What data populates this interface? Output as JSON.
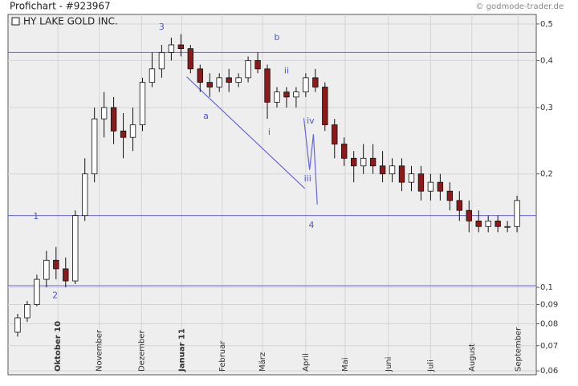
{
  "header": {
    "title": "Profichart - #923967",
    "copyright": "© godmode-trader.de"
  },
  "chart_data": {
    "type": "candlestick",
    "legend": "HY LAKE GOLD INC.",
    "log_scale": true,
    "grid": true,
    "up_color": "#ffffff",
    "down_color": "#8b1a1a",
    "line_color": "#6666dd",
    "categories": [
      null,
      null,
      null,
      null,
      null,
      null,
      null,
      null,
      null,
      null,
      null,
      null,
      null,
      null,
      null,
      null,
      null,
      null,
      null,
      null,
      null,
      null,
      null,
      null,
      null,
      null,
      null,
      null,
      null,
      null,
      null,
      null,
      null,
      null,
      null,
      null,
      null,
      null,
      null,
      null,
      null,
      null,
      null,
      null,
      null,
      null,
      null,
      null,
      null,
      null,
      null,
      null,
      null
    ],
    "open": [
      0.076,
      0.083,
      0.09,
      0.105,
      0.118,
      0.112,
      0.104,
      0.155,
      0.2,
      0.28,
      0.3,
      0.26,
      0.25,
      0.27,
      0.35,
      0.38,
      0.42,
      0.44,
      0.43,
      0.38,
      0.35,
      0.34,
      0.36,
      0.35,
      0.36,
      0.4,
      0.38,
      0.31,
      0.33,
      0.32,
      0.33,
      0.36,
      0.34,
      0.27,
      0.24,
      0.22,
      0.21,
      0.22,
      0.21,
      0.2,
      0.21,
      0.19,
      0.2,
      0.18,
      0.19,
      0.18,
      0.17,
      0.16,
      0.15,
      0.145,
      0.15,
      0.145,
      0.145
    ],
    "high": [
      0.085,
      0.092,
      0.108,
      0.125,
      0.128,
      0.12,
      0.16,
      0.22,
      0.3,
      0.33,
      0.32,
      0.29,
      0.3,
      0.36,
      0.42,
      0.44,
      0.46,
      0.47,
      0.44,
      0.39,
      0.37,
      0.37,
      0.38,
      0.37,
      0.41,
      0.42,
      0.39,
      0.34,
      0.34,
      0.34,
      0.37,
      0.38,
      0.35,
      0.28,
      0.25,
      0.23,
      0.24,
      0.24,
      0.23,
      0.22,
      0.22,
      0.21,
      0.21,
      0.2,
      0.2,
      0.19,
      0.18,
      0.17,
      0.16,
      0.155,
      0.155,
      0.15,
      0.175
    ],
    "low": [
      0.074,
      0.081,
      0.089,
      0.1,
      0.105,
      0.1,
      0.102,
      0.15,
      0.19,
      0.25,
      0.24,
      0.22,
      0.23,
      0.26,
      0.34,
      0.36,
      0.4,
      0.41,
      0.37,
      0.33,
      0.32,
      0.33,
      0.33,
      0.34,
      0.35,
      0.37,
      0.28,
      0.3,
      0.3,
      0.3,
      0.32,
      0.33,
      0.26,
      0.22,
      0.21,
      0.19,
      0.2,
      0.2,
      0.19,
      0.19,
      0.18,
      0.18,
      0.17,
      0.17,
      0.17,
      0.16,
      0.15,
      0.14,
      0.14,
      0.14,
      0.14,
      0.14,
      0.14
    ],
    "close": [
      0.083,
      0.09,
      0.105,
      0.118,
      0.112,
      0.104,
      0.155,
      0.2,
      0.28,
      0.3,
      0.26,
      0.25,
      0.27,
      0.35,
      0.38,
      0.42,
      0.44,
      0.43,
      0.38,
      0.35,
      0.34,
      0.36,
      0.35,
      0.36,
      0.4,
      0.38,
      0.31,
      0.33,
      0.32,
      0.33,
      0.36,
      0.34,
      0.27,
      0.24,
      0.22,
      0.21,
      0.22,
      0.21,
      0.2,
      0.21,
      0.19,
      0.2,
      0.18,
      0.19,
      0.18,
      0.17,
      0.16,
      0.15,
      0.145,
      0.15,
      0.145,
      0.145,
      0.17
    ],
    "xlim": [
      -1,
      54
    ],
    "xticks": [
      {
        "value": 4.2,
        "label": "Oktober 10",
        "bold": true
      },
      {
        "value": 8.5,
        "label": "November"
      },
      {
        "value": 12.9,
        "label": "Dezember"
      },
      {
        "value": 17.1,
        "label": "Januar 11",
        "bold": true
      },
      {
        "value": 21.3,
        "label": "Februar"
      },
      {
        "value": 25.5,
        "label": "März"
      },
      {
        "value": 30.0,
        "label": "April"
      },
      {
        "value": 34.1,
        "label": "Mai"
      },
      {
        "value": 38.6,
        "label": "Juni"
      },
      {
        "value": 43.0,
        "label": "Juli"
      },
      {
        "value": 47.3,
        "label": "August"
      },
      {
        "value": 52.1,
        "label": "September"
      }
    ],
    "ylim": [
      0.0586,
      0.53
    ],
    "yticks": [
      {
        "value": 0.5,
        "label": "0,5"
      },
      {
        "value": 0.4,
        "label": "0,4"
      },
      {
        "value": 0.3,
        "label": "0,3"
      },
      {
        "value": 0.2,
        "label": "0,2"
      },
      {
        "value": 0.1,
        "label": "0,1"
      },
      {
        "value": 0.09,
        "label": "0,09"
      },
      {
        "value": 0.08,
        "label": "0,08"
      },
      {
        "value": 0.07,
        "label": "0,07"
      },
      {
        "value": 0.06,
        "label": "0,06"
      }
    ],
    "hlines": [
      0.42,
      0.155,
      0.101
    ],
    "lines": [
      [
        [
          17.6,
          0.362
        ],
        [
          29.9,
          0.183
        ]
      ],
      [
        [
          29.8,
          0.281
        ],
        [
          30.4,
          0.205
        ],
        [
          30.8,
          0.255
        ],
        [
          31.2,
          0.166
        ]
      ]
    ],
    "annotations": [
      {
        "text": "1",
        "x": 1.9,
        "y": 0.154
      },
      {
        "text": "2",
        "x": 3.9,
        "y": 0.095
      },
      {
        "text": "3",
        "x": 15.0,
        "y": 0.49
      },
      {
        "text": "a",
        "x": 19.6,
        "y": 0.284
      },
      {
        "text": "b",
        "x": 27.0,
        "y": 0.46
      },
      {
        "text": "i",
        "x": 26.2,
        "y": 0.258
      },
      {
        "text": "ii",
        "x": 28.0,
        "y": 0.375
      },
      {
        "text": "iii",
        "x": 30.2,
        "y": 0.194
      },
      {
        "text": "iv",
        "x": 30.5,
        "y": 0.276
      },
      {
        "text": "4",
        "x": 30.6,
        "y": 0.146
      }
    ]
  }
}
